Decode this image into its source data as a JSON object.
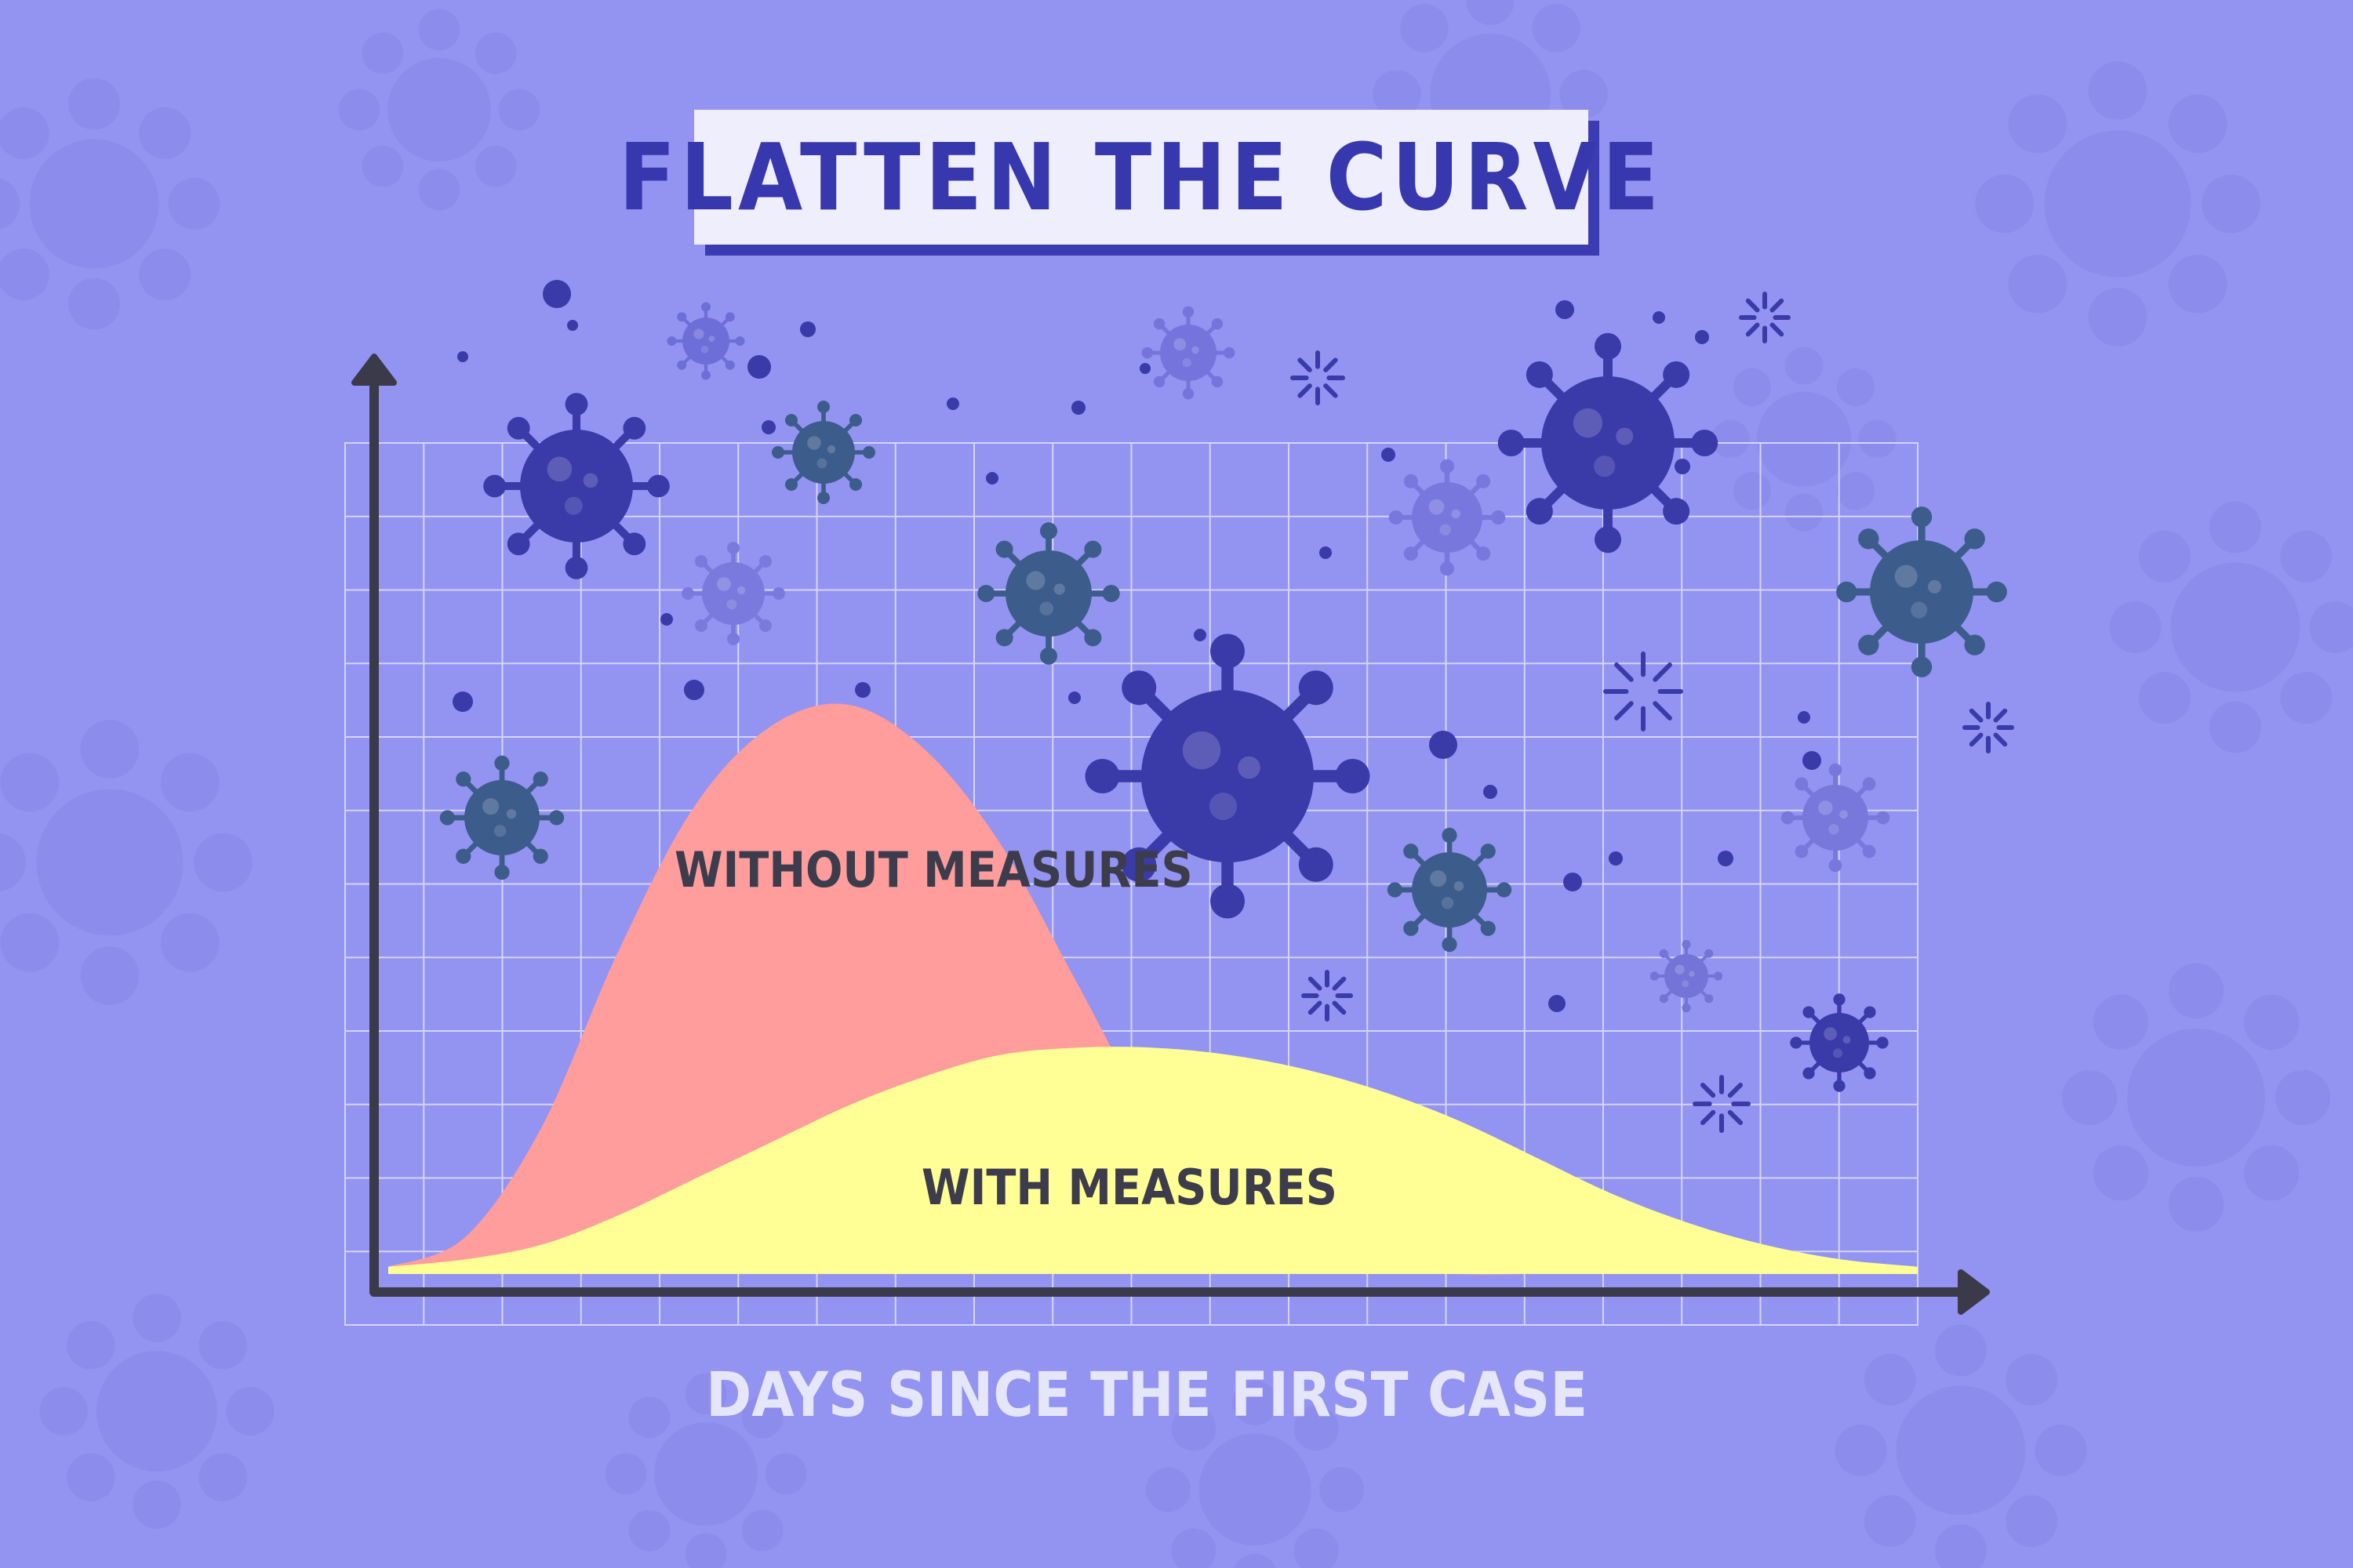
{
  "title": "FLATTEN THE CURVE",
  "colors": {
    "background": "#9393f2",
    "title_text": "#3838ae",
    "title_box": "#eeeefc",
    "title_shadow": "#3b3bb2",
    "grid": "#d4d4fa",
    "axis": "#3a3a4a",
    "without_measures": "#ff9c9c",
    "with_measures": "#ffff96",
    "label_text": "#3c3c4c",
    "xlabel_text": "#e6e6fa",
    "virus_dark": "#3a3aa8",
    "virus_teal": "#3c5c8c"
  },
  "icons": [
    "virus-icon",
    "arrow-up-icon",
    "arrow-right-icon"
  ],
  "chart_data": {
    "type": "area",
    "title": "FLATTEN THE CURVE",
    "xlabel": "DAYS SINCE THE FIRST CASE",
    "ylabel": "",
    "grid": true,
    "axis_ticks": false,
    "x": [
      0,
      1,
      2,
      3,
      4,
      5,
      6,
      7,
      8,
      9,
      10,
      11,
      12,
      13,
      14,
      15,
      16,
      17,
      18,
      19,
      20
    ],
    "series": [
      {
        "name": "WITHOUT MEASURES",
        "values": [
          0.1,
          0.5,
          2.0,
          4.4,
          6.4,
          7.5,
          7.8,
          7.2,
          5.9,
          4.0,
          2.1,
          0.9,
          0.3,
          0.1,
          0.0,
          0.0,
          0.0,
          0.0,
          0.0,
          0.0,
          0.0
        ]
      },
      {
        "name": "WITH MEASURES",
        "values": [
          0.1,
          0.2,
          0.4,
          0.8,
          1.3,
          1.8,
          2.3,
          2.7,
          3.0,
          3.1,
          3.1,
          3.0,
          2.8,
          2.5,
          2.1,
          1.6,
          1.1,
          0.7,
          0.4,
          0.2,
          0.1
        ]
      }
    ]
  }
}
